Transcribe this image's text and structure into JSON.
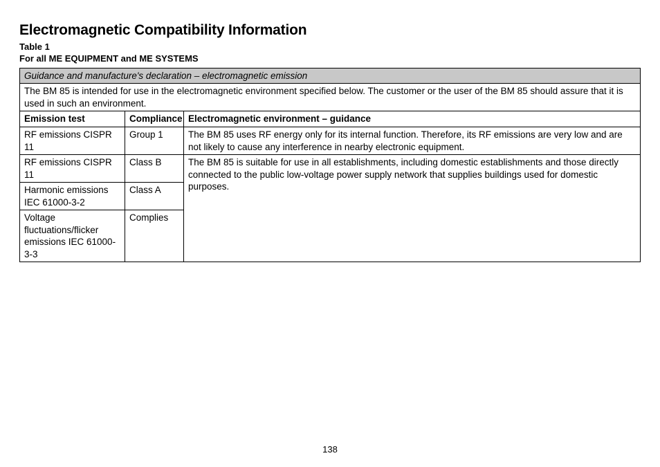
{
  "title": "Electromagnetic Compatibility Information",
  "table_label": "Table 1",
  "subheading": "For all ME EQUIPMENT and ME SYSTEMS",
  "banner": "Guidance and manufacture's declaration – electromagnetic emission",
  "intro": "The BM 85 is intended for use in the electromagnetic environment specified below. The customer or the user of the BM 85 should assure that it is used in such an environment.",
  "headers": {
    "emission_test": "Emission test",
    "compliance": "Compliance",
    "environment": "Electromagnetic environment – guidance"
  },
  "rows": {
    "r1_test": "RF emissions CISPR 11",
    "r1_comp": "Group 1",
    "r1_guide": "The BM 85 uses RF energy only for its internal function. Therefore, its RF emissions are very low and are not likely to cause any interference in nearby electronic equipment.",
    "r2_test": "RF emissions CISPR 11",
    "r2_comp": "Class B",
    "r2_guide": "The BM 85 is suitable for use in all establishments, including domestic establishments and those directly connected to the public low-voltage power supply network that supplies buildings used for domestic purposes.",
    "r3_test": "Harmonic emissions IEC 61000-3-2",
    "r3_comp": "Class A",
    "r4_test": "Voltage fluctuations/flicker emissions IEC 61000-3-3",
    "r4_comp": "Complies"
  },
  "page_number": "138",
  "colors": {
    "banner_bg": "#c8c8c8",
    "border": "#000000",
    "text": "#000000",
    "background": "#ffffff"
  }
}
